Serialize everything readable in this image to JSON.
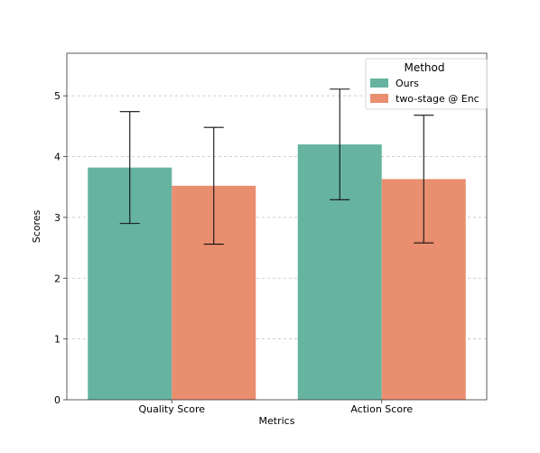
{
  "chart_data": {
    "type": "bar",
    "title": "",
    "xlabel": "Metrics",
    "ylabel": "Scores",
    "categories": [
      "Quality Score",
      "Action Score"
    ],
    "ylim": [
      0,
      5.7
    ],
    "yticks": [
      0,
      1,
      2,
      3,
      4,
      5
    ],
    "grid": "horizontal-dashed",
    "legend": {
      "title": "Method",
      "placement": "top-right"
    },
    "series": [
      {
        "name": "Ours",
        "color": "#66b3a0",
        "values": [
          3.82,
          4.2
        ],
        "error": [
          0.92,
          0.91
        ]
      },
      {
        "name": "two-stage @ Enc",
        "color": "#e98e6f",
        "values": [
          3.52,
          3.63
        ],
        "error": [
          0.96,
          1.05
        ]
      }
    ]
  }
}
